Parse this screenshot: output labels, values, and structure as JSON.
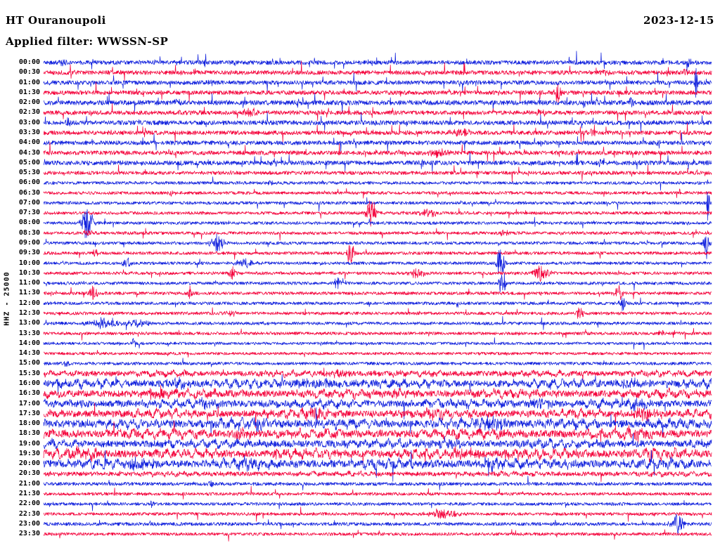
{
  "header": {
    "station_title": "HT Ouranoupoli",
    "date": "2023-12-15",
    "filter_label": "Applied filter: WWSSN-SP"
  },
  "colors": {
    "trace_blue": "#1222dd",
    "trace_red": "#f4043c",
    "text": "#000000",
    "background": "#ffffff"
  },
  "chart_data": {
    "type": "line",
    "title": "HT Ouranoupoli",
    "subtitle": "Applied filter: WWSSN-SP",
    "date": "2023-12-15",
    "ylabel": "HHZ - 25000",
    "channel": "HHZ",
    "gain": "25000",
    "minutes_per_row": 30,
    "row_count": 48,
    "legend": "alternating blue/red half-hour traces, amplitudes in pixels, events as [position_fraction, amplitude_px, width_fraction]",
    "rows": [
      {
        "label": "00:00",
        "color": "blue",
        "noise": 3.0,
        "spiky": 1.0,
        "lf": 0,
        "events": [
          [
            0.03,
            6,
            0.004
          ],
          [
            0.24,
            5,
            0.004
          ],
          [
            0.966,
            6,
            0.004
          ]
        ]
      },
      {
        "label": "00:30",
        "color": "red",
        "noise": 3.0,
        "spiky": 1.0,
        "lf": 0,
        "events": [
          [
            0.84,
            5,
            0.005
          ],
          [
            0.96,
            5,
            0.004
          ]
        ]
      },
      {
        "label": "01:00",
        "color": "blue",
        "noise": 3.0,
        "spiky": 1.0,
        "lf": 0,
        "events": [
          [
            0.25,
            6,
            0.004
          ],
          [
            0.977,
            30,
            0.002
          ]
        ]
      },
      {
        "label": "01:30",
        "color": "red",
        "noise": 3.0,
        "spiky": 1.0,
        "lf": 0,
        "events": [
          [
            0.77,
            15,
            0.005
          ]
        ]
      },
      {
        "label": "02:00",
        "color": "blue",
        "noise": 3.4,
        "spiky": 1.0,
        "lf": 0,
        "events": [
          [
            0.2,
            6,
            0.004
          ],
          [
            0.38,
            7,
            0.004
          ],
          [
            0.88,
            6,
            0.004
          ]
        ]
      },
      {
        "label": "02:30",
        "color": "red",
        "noise": 3.0,
        "spiky": 1.0,
        "lf": 0,
        "events": [
          [
            0.31,
            8,
            0.01
          ],
          [
            0.745,
            5,
            0.008
          ]
        ]
      },
      {
        "label": "03:00",
        "color": "blue",
        "noise": 3.2,
        "spiky": 1.0,
        "lf": 0,
        "events": [
          [
            0.035,
            7,
            0.005
          ],
          [
            0.5,
            5,
            0.004
          ]
        ]
      },
      {
        "label": "03:30",
        "color": "red",
        "noise": 3.0,
        "spiky": 1.0,
        "lf": 0,
        "events": [
          [
            0.63,
            5,
            0.02
          ],
          [
            0.82,
            5,
            0.006
          ]
        ]
      },
      {
        "label": "04:00",
        "color": "blue",
        "noise": 3.0,
        "spiky": 1.0,
        "lf": 0,
        "events": [
          [
            0.92,
            6,
            0.004
          ]
        ]
      },
      {
        "label": "04:30",
        "color": "red",
        "noise": 3.0,
        "spiky": 1.0,
        "lf": 0,
        "events": [
          [
            0.59,
            5,
            0.015
          ]
        ]
      },
      {
        "label": "05:00",
        "color": "blue",
        "noise": 3.2,
        "spiky": 1.0,
        "lf": 0,
        "events": [
          [
            0.345,
            6,
            0.004
          ],
          [
            0.835,
            5,
            0.005
          ]
        ]
      },
      {
        "label": "05:30",
        "color": "red",
        "noise": 2.6,
        "spiky": 0.7,
        "lf": 0,
        "events": []
      },
      {
        "label": "06:00",
        "color": "blue",
        "noise": 2.2,
        "spiky": 0.4,
        "lf": 0,
        "events": [
          [
            0.34,
            5,
            0.004
          ]
        ]
      },
      {
        "label": "06:30",
        "color": "red",
        "noise": 2.2,
        "spiky": 0.4,
        "lf": 0,
        "events": [
          [
            0.19,
            4,
            0.006
          ]
        ]
      },
      {
        "label": "07:00",
        "color": "blue",
        "noise": 2.2,
        "spiky": 0.4,
        "lf": 0,
        "events": [
          [
            0.995,
            30,
            0.002
          ]
        ]
      },
      {
        "label": "07:30",
        "color": "red",
        "noise": 2.2,
        "spiky": 0.4,
        "lf": 0,
        "events": [
          [
            0.49,
            24,
            0.007
          ],
          [
            0.577,
            7,
            0.012
          ]
        ]
      },
      {
        "label": "08:00",
        "color": "blue",
        "noise": 2.2,
        "spiky": 0.4,
        "lf": 0,
        "events": [
          [
            0.066,
            26,
            0.008
          ]
        ]
      },
      {
        "label": "08:30",
        "color": "red",
        "noise": 2.2,
        "spiky": 0.4,
        "lf": 0,
        "events": [
          [
            0.066,
            4,
            0.008
          ],
          [
            0.69,
            4,
            0.008
          ]
        ]
      },
      {
        "label": "09:00",
        "color": "blue",
        "noise": 2.2,
        "spiky": 0.4,
        "lf": 0,
        "events": [
          [
            0.26,
            13,
            0.01
          ],
          [
            0.992,
            24,
            0.004
          ]
        ]
      },
      {
        "label": "09:30",
        "color": "red",
        "noise": 2.2,
        "spiky": 0.4,
        "lf": 0,
        "events": [
          [
            0.077,
            6,
            0.004
          ],
          [
            0.46,
            16,
            0.005
          ]
        ]
      },
      {
        "label": "10:00",
        "color": "blue",
        "noise": 2.2,
        "spiky": 0.4,
        "lf": 0,
        "events": [
          [
            0.124,
            11,
            0.005
          ],
          [
            0.3,
            6,
            0.015
          ],
          [
            0.684,
            26,
            0.006
          ]
        ]
      },
      {
        "label": "10:30",
        "color": "red",
        "noise": 2.2,
        "spiky": 0.4,
        "lf": 0,
        "events": [
          [
            0.282,
            11,
            0.005
          ],
          [
            0.56,
            8,
            0.01
          ],
          [
            0.745,
            13,
            0.012
          ]
        ]
      },
      {
        "label": "11:00",
        "color": "blue",
        "noise": 2.2,
        "spiky": 0.4,
        "lf": 0,
        "events": [
          [
            0.44,
            11,
            0.005
          ],
          [
            0.687,
            22,
            0.005
          ]
        ]
      },
      {
        "label": "11:30",
        "color": "red",
        "noise": 2.2,
        "spiky": 0.4,
        "lf": 0,
        "events": [
          [
            0.074,
            11,
            0.006
          ],
          [
            0.219,
            8,
            0.004
          ],
          [
            0.861,
            11,
            0.006
          ]
        ]
      },
      {
        "label": "12:00",
        "color": "blue",
        "noise": 2.2,
        "spiky": 0.4,
        "lf": 0,
        "events": [
          [
            0.866,
            13,
            0.005
          ]
        ]
      },
      {
        "label": "12:30",
        "color": "red",
        "noise": 2.2,
        "spiky": 0.4,
        "lf": 0,
        "events": [
          [
            0.28,
            4,
            0.01
          ],
          [
            0.803,
            9,
            0.006
          ]
        ]
      },
      {
        "label": "13:00",
        "color": "blue",
        "noise": 2.2,
        "spiky": 0.4,
        "lf": 0,
        "events": [
          [
            0.093,
            8,
            0.025
          ],
          [
            0.14,
            6,
            0.015
          ]
        ]
      },
      {
        "label": "13:30",
        "color": "red",
        "noise": 2.2,
        "spiky": 0.4,
        "lf": 0,
        "events": [
          [
            0.924,
            4,
            0.006
          ]
        ]
      },
      {
        "label": "14:00",
        "color": "blue",
        "noise": 2.0,
        "spiky": 0.4,
        "lf": 0,
        "events": [
          [
            0.135,
            10,
            0.003
          ]
        ]
      },
      {
        "label": "14:30",
        "color": "red",
        "noise": 2.0,
        "spiky": 0.35,
        "lf": 0,
        "events": []
      },
      {
        "label": "15:00",
        "color": "blue",
        "noise": 2.2,
        "spiky": 0.35,
        "lf": 0,
        "events": [
          [
            0.035,
            4,
            0.005
          ]
        ]
      },
      {
        "label": "15:30",
        "color": "red",
        "noise": 3.5,
        "spiky": 0.2,
        "lf": 2,
        "events": [
          [
            0.44,
            5,
            0.02
          ]
        ]
      },
      {
        "label": "16:00",
        "color": "blue",
        "noise": 4.5,
        "spiky": 0.2,
        "lf": 3,
        "events": [
          [
            0.2,
            6,
            0.02
          ],
          [
            0.41,
            6,
            0.03
          ],
          [
            0.88,
            7,
            0.02
          ]
        ]
      },
      {
        "label": "16:30",
        "color": "red",
        "noise": 4.5,
        "spiky": 0.2,
        "lf": 3,
        "events": [
          [
            0.177,
            7,
            0.02
          ],
          [
            0.535,
            6,
            0.02
          ]
        ]
      },
      {
        "label": "17:00",
        "color": "blue",
        "noise": 4.5,
        "spiky": 0.2,
        "lf": 3,
        "events": [
          [
            0.25,
            6,
            0.02
          ],
          [
            0.745,
            8,
            0.015
          ],
          [
            0.887,
            7,
            0.015
          ]
        ]
      },
      {
        "label": "17:30",
        "color": "red",
        "noise": 4.5,
        "spiky": 0.2,
        "lf": 3,
        "events": [
          [
            0.41,
            7,
            0.02
          ],
          [
            0.587,
            7,
            0.02
          ],
          [
            0.9,
            8,
            0.02
          ]
        ]
      },
      {
        "label": "18:00",
        "color": "blue",
        "noise": 5.0,
        "spiky": 0.2,
        "lf": 3.5,
        "events": [
          [
            0.324,
            7,
            0.02
          ],
          [
            0.67,
            9,
            0.025
          ]
        ]
      },
      {
        "label": "18:30",
        "color": "red",
        "noise": 5.0,
        "spiky": 0.2,
        "lf": 3.5,
        "events": [
          [
            0.3,
            6,
            0.02
          ],
          [
            0.887,
            8,
            0.02
          ]
        ]
      },
      {
        "label": "19:00",
        "color": "blue",
        "noise": 4.5,
        "spiky": 0.2,
        "lf": 3,
        "events": [
          [
            0.608,
            6,
            0.02
          ]
        ]
      },
      {
        "label": "19:30",
        "color": "red",
        "noise": 5.0,
        "spiky": 0.2,
        "lf": 3.5,
        "events": [
          [
            0.06,
            7,
            0.02
          ],
          [
            0.63,
            7,
            0.02
          ],
          [
            0.91,
            7,
            0.015
          ]
        ]
      },
      {
        "label": "20:00",
        "color": "blue",
        "noise": 5.0,
        "spiky": 0.2,
        "lf": 3.5,
        "events": [
          [
            0.145,
            8,
            0.02
          ],
          [
            0.31,
            7,
            0.02
          ],
          [
            0.67,
            7,
            0.02
          ]
        ]
      },
      {
        "label": "20:30",
        "color": "red",
        "noise": 3.0,
        "spiky": 0.25,
        "lf": 1.5,
        "events": []
      },
      {
        "label": "21:00",
        "color": "blue",
        "noise": 2.4,
        "spiky": 0.35,
        "lf": 0,
        "events": [
          [
            0.25,
            5,
            0.004
          ]
        ]
      },
      {
        "label": "21:30",
        "color": "red",
        "noise": 2.2,
        "spiky": 0.35,
        "lf": 0,
        "events": []
      },
      {
        "label": "22:00",
        "color": "blue",
        "noise": 2.2,
        "spiky": 0.35,
        "lf": 0,
        "events": [
          [
            0.161,
            6,
            0.003
          ]
        ]
      },
      {
        "label": "22:30",
        "color": "red",
        "noise": 2.2,
        "spiky": 0.35,
        "lf": 0,
        "events": [
          [
            0.598,
            7,
            0.02
          ]
        ]
      },
      {
        "label": "23:00",
        "color": "blue",
        "noise": 2.4,
        "spiky": 0.35,
        "lf": 0,
        "events": [
          [
            0.95,
            15,
            0.01
          ]
        ]
      },
      {
        "label": "23:30",
        "color": "red",
        "noise": 2.2,
        "spiky": 0.35,
        "lf": 0,
        "events": []
      }
    ]
  }
}
